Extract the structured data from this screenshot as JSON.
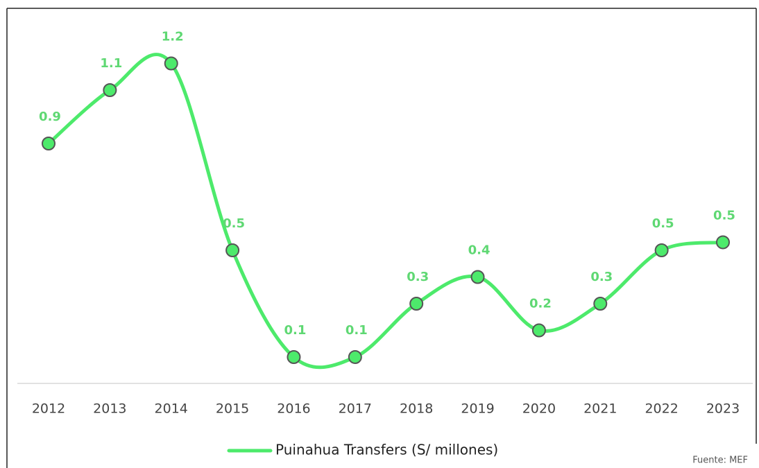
{
  "chart_data": {
    "type": "line",
    "categories": [
      "2012",
      "2013",
      "2014",
      "2015",
      "2016",
      "2017",
      "2018",
      "2019",
      "2020",
      "2021",
      "2022",
      "2023"
    ],
    "series": [
      {
        "name": "Puinahua Transfers (S/ millones)",
        "color": "#4dea6b",
        "values": [
          0.9,
          1.1,
          1.2,
          0.5,
          0.1,
          0.1,
          0.3,
          0.4,
          0.2,
          0.3,
          0.5,
          0.53
        ],
        "value_labels": [
          "0.9",
          "1.1",
          "1.2",
          "0.5",
          "0.1",
          "0.1",
          "0.3",
          "0.4",
          "0.2",
          "0.3",
          "0.5",
          "0.5"
        ]
      }
    ],
    "ylim": [
      0,
      1.3
    ],
    "smooth": true,
    "annotation": "Fuente: MEF"
  }
}
